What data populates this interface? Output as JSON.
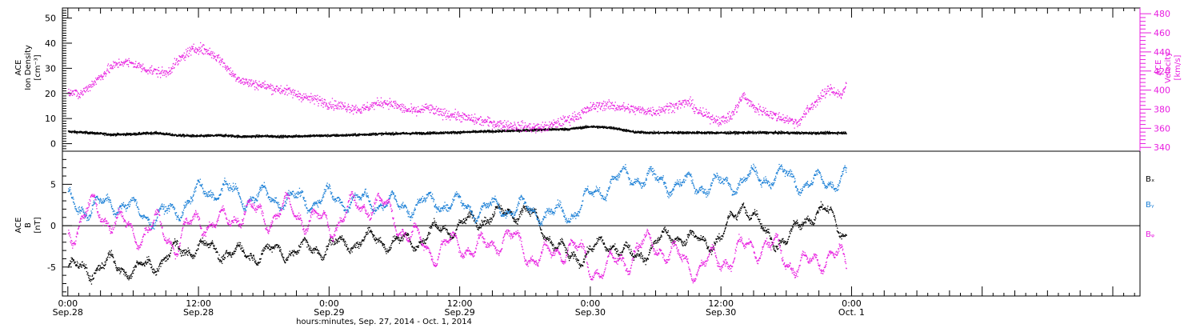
{
  "colors": {
    "black": "#000000",
    "magenta": "#e81ee0",
    "blue": "#1a7fd6"
  },
  "x_axis": {
    "title": "hours:minutes, Sep. 27, 2014 - Oct. 1, 2014",
    "range_hours": [
      -0.5,
      98.5
    ],
    "ticks": [
      {
        "hour": 0,
        "time": "0:00",
        "date": "Sep.28"
      },
      {
        "hour": 12,
        "time": "12:00",
        "date": "Sep.28"
      },
      {
        "hour": 24,
        "time": "0:00",
        "date": "Sep.29"
      },
      {
        "hour": 36,
        "time": "12:00",
        "date": "Sep.29"
      },
      {
        "hour": 48,
        "time": "0:00",
        "date": "Sep.30"
      },
      {
        "hour": 60,
        "time": "12:00",
        "date": "Sep.30"
      },
      {
        "hour": 72,
        "time": "0:00",
        "date": "Oct. 1"
      }
    ]
  },
  "chart_data": [
    {
      "type": "scatter",
      "panel": "top",
      "ylabel": [
        "ACE",
        "Ion Density",
        "[cm⁻³]"
      ],
      "ylim": [
        -3,
        54
      ],
      "yticks": [
        0,
        10,
        20,
        30,
        40,
        50
      ],
      "y2label": [
        "ACE",
        "Velocity",
        "[km/s]"
      ],
      "y2lim": [
        336,
        486
      ],
      "y2ticks": [
        340,
        360,
        380,
        400,
        420,
        440,
        460,
        480
      ],
      "series": [
        {
          "axis": "left",
          "color": "black",
          "hours": [
            0,
            2,
            4,
            6,
            8,
            10,
            12,
            14,
            16,
            18,
            20,
            22,
            24,
            26,
            28,
            30,
            32,
            34,
            36,
            38,
            40,
            42,
            44,
            46,
            48,
            50,
            52,
            54,
            56,
            60,
            64,
            68,
            71.5
          ],
          "values": [
            5,
            4.5,
            3.8,
            4,
            4.5,
            3.5,
            3.2,
            3.5,
            3,
            3.2,
            3,
            3.3,
            3.4,
            3.6,
            4,
            4.2,
            4.3,
            4.5,
            4.7,
            5,
            5.2,
            5.5,
            5.8,
            6,
            7,
            6.5,
            4.8,
            4.5,
            4.6,
            4.5,
            4.6,
            4.4,
            4.5
          ]
        },
        {
          "axis": "right",
          "color": "magenta",
          "hours": [
            0,
            1,
            2,
            3,
            4,
            5,
            6,
            7,
            8,
            9,
            10,
            11,
            12,
            13,
            14,
            15,
            16,
            17,
            18,
            19,
            20,
            21,
            22,
            23,
            24,
            25,
            26,
            27,
            28,
            29,
            30,
            31,
            32,
            33,
            34,
            35,
            36,
            37,
            38,
            39,
            40,
            41,
            42,
            43,
            44,
            45,
            46,
            47,
            48,
            49,
            50,
            51,
            52,
            53,
            54,
            55,
            56,
            57,
            58,
            59,
            60,
            61,
            62,
            63,
            64,
            65,
            66,
            67,
            68,
            69,
            70,
            71,
            71.5
          ],
          "values": [
            400,
            395,
            405,
            415,
            425,
            430,
            428,
            423,
            420,
            418,
            430,
            440,
            445,
            440,
            432,
            418,
            410,
            407,
            405,
            402,
            400,
            396,
            392,
            390,
            386,
            384,
            382,
            380,
            385,
            388,
            385,
            380,
            378,
            382,
            377,
            375,
            373,
            370,
            368,
            366,
            364,
            363,
            362,
            361,
            362,
            366,
            370,
            375,
            382,
            385,
            384,
            382,
            380,
            379,
            378,
            382,
            385,
            388,
            377,
            372,
            368,
            374,
            395,
            382,
            378,
            373,
            370,
            366,
            380,
            392,
            402,
            395,
            405
          ]
        }
      ]
    },
    {
      "type": "scatter",
      "panel": "bottom",
      "ylabel": [
        "ACE",
        "B",
        "[nT]"
      ],
      "ylim": [
        -8.5,
        9
      ],
      "yticks": [
        -5,
        0,
        5
      ],
      "reference_line": 0,
      "legend": [
        {
          "label": "Bₓ",
          "color": "black"
        },
        {
          "label": "Bᵧ",
          "color": "blue"
        },
        {
          "label": "Bᵩ",
          "color": "magenta"
        }
      ],
      "series": [
        {
          "name": "Bx",
          "color": "black",
          "hours": [
            0,
            2,
            4,
            6,
            8,
            10,
            12,
            14,
            16,
            18,
            20,
            22,
            24,
            26,
            28,
            30,
            32,
            34,
            36,
            38,
            40,
            42,
            44,
            46,
            48,
            50,
            52,
            54,
            56,
            58,
            60,
            62,
            64,
            66,
            68,
            70,
            71.5
          ],
          "values": [
            -5,
            -5.3,
            -4.5,
            -5.5,
            -4.5,
            -3,
            -2.5,
            -3,
            -3.5,
            -3.2,
            -3,
            -2.8,
            -2.5,
            -2,
            -1.5,
            -2,
            -1.8,
            -0.5,
            0,
            1,
            1.5,
            2,
            -1,
            -4,
            -3,
            -2,
            -4,
            -2,
            -1,
            -2,
            -1.5,
            3,
            -1,
            -2,
            1.5,
            1.5,
            -1
          ]
        },
        {
          "name": "By",
          "color": "blue",
          "hours": [
            0,
            2,
            4,
            6,
            8,
            10,
            12,
            14,
            16,
            18,
            20,
            22,
            24,
            26,
            28,
            30,
            32,
            34,
            36,
            38,
            40,
            42,
            44,
            46,
            48,
            50,
            52,
            54,
            56,
            58,
            60,
            62,
            64,
            66,
            68,
            70,
            71.5
          ],
          "values": [
            3,
            2,
            3,
            2,
            1,
            2,
            4,
            4.5,
            3.5,
            3.5,
            3.3,
            3,
            3.5,
            3,
            3,
            2.5,
            2.5,
            3,
            2.5,
            2,
            2.3,
            2,
            1.5,
            1.5,
            3.5,
            5.5,
            6,
            5.5,
            5,
            5,
            5,
            5.5,
            6,
            6,
            5,
            5.5,
            6
          ]
        },
        {
          "name": "Bz",
          "color": "magenta",
          "hours": [
            0,
            2,
            4,
            6,
            8,
            10,
            12,
            14,
            16,
            18,
            20,
            22,
            24,
            26,
            28,
            30,
            32,
            34,
            36,
            38,
            40,
            42,
            44,
            46,
            48,
            50,
            52,
            54,
            56,
            58,
            60,
            62,
            64,
            66,
            68,
            70,
            71.5
          ],
          "values": [
            -1,
            2,
            1,
            -1,
            0,
            -2,
            1,
            0,
            2,
            1,
            2,
            1,
            0,
            2,
            3,
            1,
            -2,
            -3,
            -2,
            -3,
            -1,
            -3,
            -4,
            -2,
            -5,
            -5,
            -3,
            -2,
            -4,
            -5,
            -4,
            -3,
            -2,
            -4,
            -5,
            -3,
            -5
          ]
        }
      ]
    }
  ]
}
